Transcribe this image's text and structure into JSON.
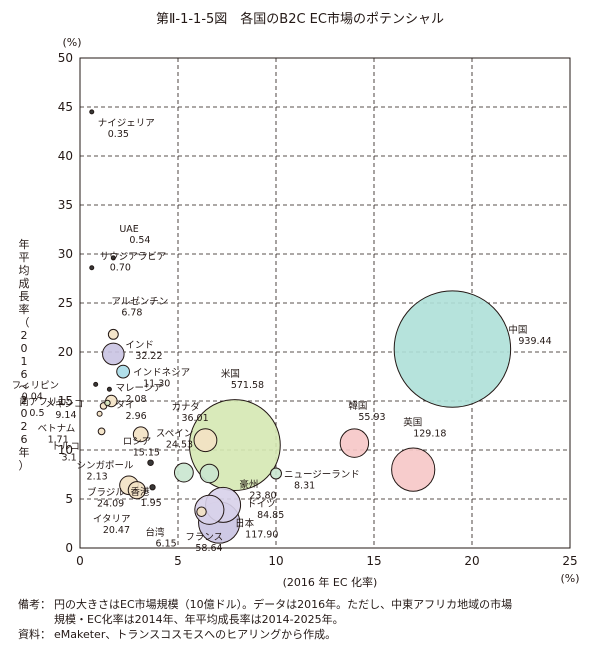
{
  "figure_title": "第Ⅱ-1-1-5図　各国のB2C EC市場のポテンシャル",
  "notes": {
    "biko_label": "備考：",
    "biko_line1": "円の大きさはEC市場規模（10億ドル）。データは2016年。ただし、中東アフリカ地域の市場",
    "biko_line2": "規模・EC化率は2014年、年平均成長率は2014-2025年。",
    "source_label": "資料：",
    "source_text": "eMaketer、トランスコスモスへのヒアリングから作成。"
  },
  "chart_data": {
    "type": "scatter",
    "xlabel": "(2016 年 EC 化率)",
    "x_unit": "(%)",
    "ylabel": "年平均成長率（2016〜2026年）",
    "y_unit": "(%)",
    "xlim": [
      0,
      25
    ],
    "ylim": [
      0,
      50
    ],
    "x_ticks": [
      0,
      5,
      10,
      15,
      20,
      25
    ],
    "y_ticks": [
      0,
      5,
      10,
      15,
      20,
      25,
      30,
      35,
      40,
      45,
      50
    ],
    "grid": true,
    "size_meaning": "EC市場規模（10億ドル）",
    "points": [
      {
        "label": "ナイジェリア",
        "value": "0.35",
        "x": 0.6,
        "y": 44.5,
        "color": "#222222"
      },
      {
        "label": "UAE",
        "value": "0.54",
        "x": 1.7,
        "y": 29.6,
        "color": "#222222"
      },
      {
        "label": "サウジアラビア",
        "value": "0.70",
        "x": 0.6,
        "y": 28.6,
        "color": "#222222"
      },
      {
        "label": "アルゼンチン",
        "value": "6.78",
        "x": 1.7,
        "y": 21.8,
        "color": "#f3e2c4"
      },
      {
        "label": "インド",
        "value": "32.22",
        "x": 1.7,
        "y": 19.8,
        "color": "#c9c3e2"
      },
      {
        "label": "インドネシア",
        "value": "11.30",
        "x": 2.2,
        "y": 18.0,
        "color": "#a8dbe8"
      },
      {
        "label": "フィリピン",
        "value": "0.04",
        "x": 0.8,
        "y": 16.7,
        "color": "#222222"
      },
      {
        "label": "南アフリカ",
        "value": "0.5",
        "x": 1.5,
        "y": 16.2,
        "color": "#222222"
      },
      {
        "label": "マレーシア",
        "value": "2.08",
        "x": 1.4,
        "y": 14.8,
        "color": "#d5e6c0"
      },
      {
        "label": "メキシコ",
        "value": "9.14",
        "x": 1.6,
        "y": 15.0,
        "color": "#f3e2c4"
      },
      {
        "label": "タイ",
        "value": "2.96",
        "x": 1.2,
        "y": 14.5,
        "color": "#f3e2c4"
      },
      {
        "label": "ベトナム",
        "value": "1.71",
        "x": 1.0,
        "y": 13.7,
        "color": "#f3e2c4"
      },
      {
        "label": "トルコ",
        "value": "3.1",
        "x": 1.1,
        "y": 11.9,
        "color": "#f3e2c4"
      },
      {
        "label": "ロシア",
        "value": "15.15",
        "x": 3.1,
        "y": 11.6,
        "color": "#f3e2c4"
      },
      {
        "label": "カナダ",
        "value": "36.01",
        "x": 6.4,
        "y": 11.0,
        "color": "#f3e2c4"
      },
      {
        "label": "スペイン",
        "value": "24.53",
        "x": 5.3,
        "y": 7.7,
        "color": "#c9e6cf"
      },
      {
        "label": "米国",
        "value": "571.58",
        "x": 7.9,
        "y": 10.5,
        "color": "#d5e8b2"
      },
      {
        "label": "韓国",
        "value": "55.93",
        "x": 14.0,
        "y": 10.7,
        "color": "#f6c6c6"
      },
      {
        "label": "英国",
        "value": "129.18",
        "x": 17.0,
        "y": 8.0,
        "color": "#f6c6c6"
      },
      {
        "label": "中国",
        "value": "939.44",
        "x": 19.0,
        "y": 20.3,
        "color": "#aee0d8"
      },
      {
        "label": "ニュージーランド",
        "value": "8.31",
        "x": 10.0,
        "y": 7.6,
        "color": "#c9e6cf"
      },
      {
        "label": "豪州",
        "value": "23.80",
        "x": 6.6,
        "y": 7.6,
        "color": "#c9e6cf"
      },
      {
        "label": "シンガポール",
        "value": "2.13",
        "x": 3.6,
        "y": 8.7,
        "color": "#222222"
      },
      {
        "label": "香港",
        "value": "1.95",
        "x": 3.7,
        "y": 6.2,
        "color": "#222222"
      },
      {
        "label": "ブラジル",
        "value": "24.09",
        "x": 2.5,
        "y": 6.4,
        "color": "#f3e2c4"
      },
      {
        "label": "イタリア",
        "value": "20.47",
        "x": 2.9,
        "y": 5.9,
        "color": "#f3e2c4"
      },
      {
        "label": "台湾",
        "value": "6.15",
        "x": 6.2,
        "y": 3.7,
        "color": "#f3e2c4"
      },
      {
        "label": "ドイツ",
        "value": "84.85",
        "x": 7.3,
        "y": 4.4,
        "color": "#d8d2ea"
      },
      {
        "label": "フランス",
        "value": "58.64",
        "x": 6.6,
        "y": 3.9,
        "color": "#d8d2ea"
      },
      {
        "label": "日本",
        "value": "117.90",
        "x": 7.1,
        "y": 2.6,
        "color": "#c9c3e2"
      }
    ]
  }
}
